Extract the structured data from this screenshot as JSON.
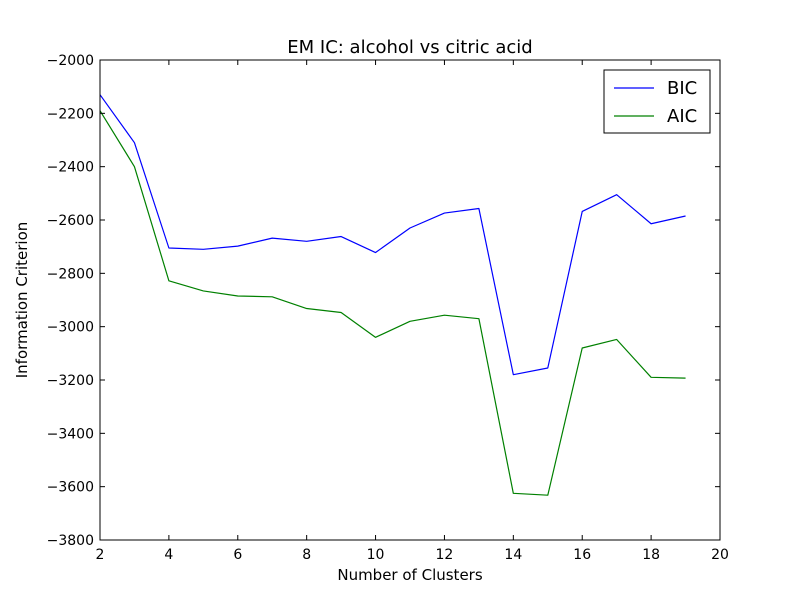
{
  "chart_data": {
    "type": "line",
    "title": "EM IC: alcohol vs citric acid",
    "xlabel": "Number of Clusters",
    "ylabel": "Information Criterion",
    "xlim": [
      2,
      20
    ],
    "ylim": [
      -3800,
      -2000
    ],
    "x_ticks": [
      2,
      4,
      6,
      8,
      10,
      12,
      14,
      16,
      18,
      20
    ],
    "y_ticks": [
      -2000,
      -2200,
      -2400,
      -2600,
      -2800,
      -3000,
      -3200,
      -3400,
      -3600,
      -3800
    ],
    "x_tick_labels": [
      "2",
      "4",
      "6",
      "8",
      "10",
      "12",
      "14",
      "16",
      "18",
      "20"
    ],
    "y_tick_labels": [
      "−2000",
      "−2200",
      "−2400",
      "−2600",
      "−2800",
      "−3000",
      "−3200",
      "−3400",
      "−3600",
      "−3800"
    ],
    "grid": false,
    "legend_position": "top-right",
    "x": [
      2,
      3,
      4,
      5,
      6,
      7,
      8,
      9,
      10,
      11,
      12,
      13,
      14,
      15,
      16,
      17,
      18,
      19
    ],
    "series": [
      {
        "name": "BIC",
        "color": "#0000ff",
        "values": [
          -2130,
          -2310,
          -2705,
          -2710,
          -2698,
          -2668,
          -2680,
          -2662,
          -2722,
          -2630,
          -2574,
          -2557,
          -3180,
          -3155,
          -2568,
          -2505,
          -2614,
          -2585
        ]
      },
      {
        "name": "AIC",
        "color": "#008000",
        "values": [
          -2190,
          -2400,
          -2828,
          -2866,
          -2885,
          -2888,
          -2932,
          -2947,
          -3040,
          -2980,
          -2957,
          -2970,
          -3625,
          -3632,
          -3080,
          -3048,
          -3190,
          -3193
        ]
      }
    ]
  }
}
